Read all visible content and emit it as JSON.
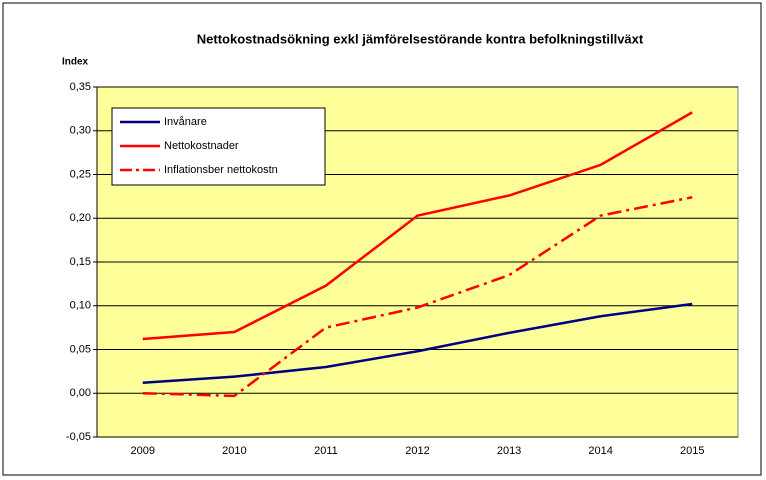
{
  "chart_data": {
    "type": "line",
    "title": "Nettokostnadsökning exkl jämförelsestörande kontra befolkningstillväxt",
    "y_label": "Index",
    "categories": [
      "2009",
      "2010",
      "2011",
      "2012",
      "2013",
      "2014",
      "2015"
    ],
    "series": [
      {
        "name": "Invånare",
        "color": "#000080",
        "style": "solid",
        "values": [
          0.012,
          0.019,
          0.03,
          0.048,
          0.069,
          0.088,
          0.102
        ]
      },
      {
        "name": "Nettokostnader",
        "color": "#ff0000",
        "style": "solid",
        "values": [
          0.062,
          0.07,
          0.123,
          0.203,
          0.226,
          0.261,
          0.321
        ]
      },
      {
        "name": "Inflationsber nettokostn",
        "color": "#ff0000",
        "style": "dash-dot",
        "values": [
          0.0,
          -0.003,
          0.075,
          0.098,
          0.135,
          0.203,
          0.224
        ]
      }
    ],
    "ylim": [
      -0.05,
      0.35
    ],
    "yticks": [
      {
        "value": -0.05,
        "label": "-0,05"
      },
      {
        "value": 0,
        "label": "0,00"
      },
      {
        "value": 0.05,
        "label": "0,05"
      },
      {
        "value": 0.1,
        "label": "0,10"
      },
      {
        "value": 0.15,
        "label": "0,15"
      },
      {
        "value": 0.2,
        "label": "0,20"
      },
      {
        "value": 0.25,
        "label": "0,25"
      },
      {
        "value": 0.3,
        "label": "0,30"
      },
      {
        "value": 0.35,
        "label": "0,35"
      }
    ],
    "grid": true,
    "plot_background": "#ffff99",
    "legend": "upper left"
  }
}
